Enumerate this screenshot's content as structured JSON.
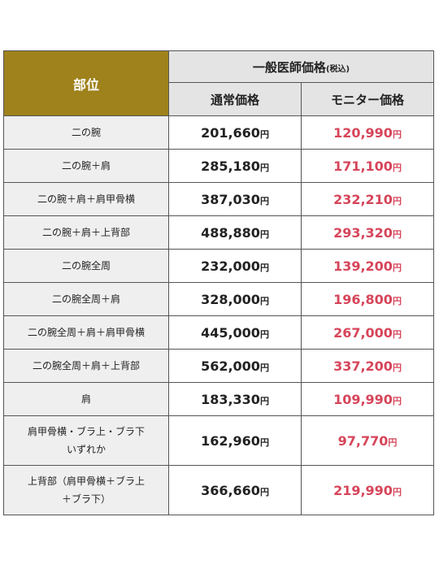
{
  "header": {
    "part_label": "部位",
    "group_label": "一般医師価格",
    "tax_note": "(税込)",
    "col_regular": "通常価格",
    "col_monitor": "モニター価格"
  },
  "currency": "円",
  "colors": {
    "header_gold": "#9f821c",
    "monitor_red": "#d6455a",
    "header_gray": "#e4e4e4",
    "part_gray": "#efefef"
  },
  "rows": [
    {
      "part": "二の腕",
      "part_line2": "",
      "regular": "201,660",
      "monitor": "120,990"
    },
    {
      "part": "二の腕＋肩",
      "part_line2": "",
      "regular": "285,180",
      "monitor": "171,100"
    },
    {
      "part": "二の腕＋肩＋肩甲骨横",
      "part_line2": "",
      "regular": "387,030",
      "monitor": "232,210"
    },
    {
      "part": "二の腕＋肩＋上背部",
      "part_line2": "",
      "regular": "488,880",
      "monitor": "293,320"
    },
    {
      "part": "二の腕全周",
      "part_line2": "",
      "regular": "232,000",
      "monitor": "139,200"
    },
    {
      "part": "二の腕全周＋肩",
      "part_line2": "",
      "regular": "328,000",
      "monitor": "196,800"
    },
    {
      "part": "二の腕全周＋肩＋肩甲骨横",
      "part_line2": "",
      "regular": "445,000",
      "monitor": "267,000"
    },
    {
      "part": "二の腕全周＋肩＋上背部",
      "part_line2": "",
      "regular": "562,000",
      "monitor": "337,200"
    },
    {
      "part": "肩",
      "part_line2": "",
      "regular": "183,330",
      "monitor": "109,990"
    },
    {
      "part": "肩甲骨横・ブラ上・ブラ下",
      "part_line2": "いずれか",
      "regular": "162,960",
      "monitor": "97,770"
    },
    {
      "part": "上背部（肩甲骨横＋ブラ上",
      "part_line2": "＋ブラ下）",
      "regular": "366,660",
      "monitor": "219,990"
    }
  ]
}
